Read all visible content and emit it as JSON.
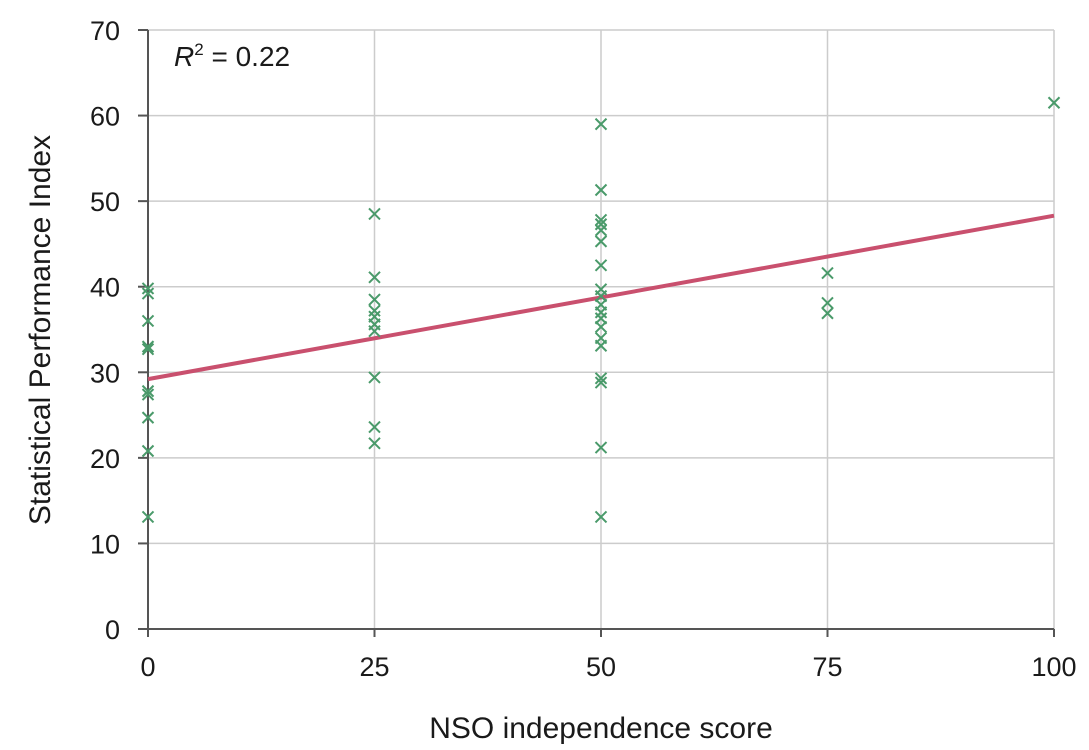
{
  "chart_data": {
    "type": "scatter",
    "title": "",
    "xlabel": "NSO independence score",
    "ylabel": "Statistical Performance Index",
    "xlim": [
      0,
      100
    ],
    "ylim": [
      0,
      70
    ],
    "x_ticks": [
      "0",
      "25",
      "50",
      "75",
      "100"
    ],
    "y_ticks": [
      "0",
      "10",
      "20",
      "30",
      "40",
      "50",
      "60",
      "70"
    ],
    "grid": true,
    "annotation": {
      "variable": "R",
      "superscript": "2",
      "rest": " = 0.22"
    },
    "colors": {
      "points": "#4a9a6a",
      "trendline": "#c9506e",
      "grid": "#cccccc",
      "axis": "#555555"
    },
    "series": [
      {
        "type": "scatter",
        "points": [
          {
            "x": 0,
            "y": 39.8
          },
          {
            "x": 0,
            "y": 39.2
          },
          {
            "x": 0,
            "y": 36.0
          },
          {
            "x": 0,
            "y": 33.0
          },
          {
            "x": 0,
            "y": 32.7
          },
          {
            "x": 0,
            "y": 27.8
          },
          {
            "x": 0,
            "y": 27.4
          },
          {
            "x": 0,
            "y": 24.7
          },
          {
            "x": 0,
            "y": 20.8
          },
          {
            "x": 0,
            "y": 13.1
          },
          {
            "x": 25,
            "y": 48.5
          },
          {
            "x": 25,
            "y": 41.1
          },
          {
            "x": 25,
            "y": 38.5
          },
          {
            "x": 25,
            "y": 37.2
          },
          {
            "x": 25,
            "y": 36.5
          },
          {
            "x": 25,
            "y": 35.6
          },
          {
            "x": 25,
            "y": 34.8
          },
          {
            "x": 25,
            "y": 29.4
          },
          {
            "x": 25,
            "y": 23.6
          },
          {
            "x": 25,
            "y": 21.7
          },
          {
            "x": 50,
            "y": 59.0
          },
          {
            "x": 50,
            "y": 51.3
          },
          {
            "x": 50,
            "y": 47.8
          },
          {
            "x": 50,
            "y": 47.3
          },
          {
            "x": 50,
            "y": 46.6
          },
          {
            "x": 50,
            "y": 45.3
          },
          {
            "x": 50,
            "y": 42.5
          },
          {
            "x": 50,
            "y": 39.7
          },
          {
            "x": 50,
            "y": 38.9
          },
          {
            "x": 50,
            "y": 37.9
          },
          {
            "x": 50,
            "y": 37.0
          },
          {
            "x": 50,
            "y": 36.3
          },
          {
            "x": 50,
            "y": 35.3
          },
          {
            "x": 50,
            "y": 34.0
          },
          {
            "x": 50,
            "y": 33.1
          },
          {
            "x": 50,
            "y": 29.3
          },
          {
            "x": 50,
            "y": 28.8
          },
          {
            "x": 50,
            "y": 21.2
          },
          {
            "x": 50,
            "y": 13.1
          },
          {
            "x": 75,
            "y": 41.6
          },
          {
            "x": 75,
            "y": 38.1
          },
          {
            "x": 75,
            "y": 36.9
          },
          {
            "x": 100,
            "y": 61.5
          }
        ]
      },
      {
        "type": "line",
        "points": [
          {
            "x": 0,
            "y": 29.2
          },
          {
            "x": 100,
            "y": 48.3
          }
        ]
      }
    ]
  }
}
